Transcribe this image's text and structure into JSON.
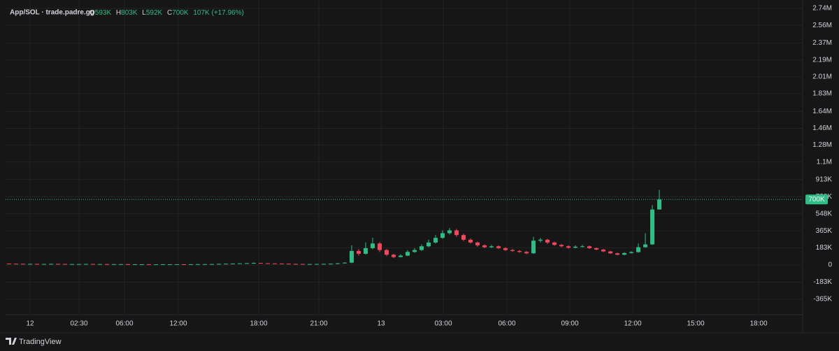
{
  "chart_data": {
    "type": "candlestick",
    "title": "App/SOL · trade.padre.gg",
    "legend": {
      "open_label": "O",
      "open": "593K",
      "high_label": "H",
      "high": "803K",
      "low_label": "L",
      "low": "592K",
      "close_label": "C",
      "close": "700K",
      "change": "107K (+17.96%)"
    },
    "up_color": "#2ebd85",
    "down_color": "#f6465d",
    "grid": true,
    "xlim": [
      0,
      114
    ],
    "xticks": [
      {
        "value": 3.5,
        "label": "12"
      },
      {
        "value": 10.5,
        "label": "02:30"
      },
      {
        "value": 17,
        "label": "06:00"
      },
      {
        "value": 24.7,
        "label": "12:00"
      },
      {
        "value": 36.2,
        "label": "18:00"
      },
      {
        "value": 44.8,
        "label": "21:00"
      },
      {
        "value": 53.7,
        "label": "13"
      },
      {
        "value": 62.6,
        "label": "03:00"
      },
      {
        "value": 71.7,
        "label": "06:00"
      },
      {
        "value": 80.7,
        "label": "09:00"
      },
      {
        "value": 89.7,
        "label": "12:00"
      },
      {
        "value": 98.7,
        "label": "15:00"
      },
      {
        "value": 107.7,
        "label": "18:00"
      }
    ],
    "ylim": [
      -530000,
      2830000
    ],
    "yticks": [
      {
        "value": -365000,
        "label": "-365K"
      },
      {
        "value": -183000,
        "label": "-183K"
      },
      0,
      {
        "value": 183000,
        "label": "183K"
      },
      {
        "value": 365000,
        "label": "365K"
      },
      {
        "value": 548000,
        "label": "548K"
      },
      {
        "value": 730000,
        "label": "730K"
      },
      {
        "value": 913000,
        "label": "913K"
      },
      {
        "value": 1100000,
        "label": "1.1M"
      },
      {
        "value": 1280000,
        "label": "1.28M"
      },
      {
        "value": 1460000,
        "label": "1.46M"
      },
      {
        "value": 1640000,
        "label": "1.64M"
      },
      {
        "value": 1830000,
        "label": "1.83M"
      },
      {
        "value": 2010000,
        "label": "2.01M"
      },
      {
        "value": 2190000,
        "label": "2.19M"
      },
      {
        "value": 2370000,
        "label": "2.37M"
      },
      {
        "value": 2560000,
        "label": "2.56M"
      },
      {
        "value": 2740000,
        "label": "2.74M"
      }
    ],
    "last_price": {
      "value": 700000,
      "label": "700K"
    },
    "candles": [
      [
        15000,
        16000,
        13000,
        14000
      ],
      [
        14000,
        15000,
        12000,
        13000
      ],
      [
        13000,
        14000,
        11000,
        12000
      ],
      [
        12000,
        13000,
        11000,
        12000
      ],
      [
        12000,
        13000,
        10000,
        11000
      ],
      [
        11000,
        12000,
        10000,
        11000
      ],
      [
        11000,
        13000,
        10000,
        12000
      ],
      [
        12000,
        13000,
        10000,
        11000
      ],
      [
        11000,
        12000,
        9000,
        10000
      ],
      [
        10000,
        11000,
        9000,
        10000
      ],
      [
        10000,
        11000,
        9000,
        10000
      ],
      [
        10000,
        12000,
        9000,
        11000
      ],
      [
        11000,
        12000,
        9000,
        10000
      ],
      [
        10000,
        11000,
        9000,
        10000
      ],
      [
        10000,
        11000,
        8000,
        9000
      ],
      [
        9000,
        10000,
        8000,
        9000
      ],
      [
        9000,
        10000,
        8000,
        9000
      ],
      [
        9000,
        10000,
        7000,
        8000
      ],
      [
        8000,
        9000,
        7000,
        8000
      ],
      [
        8000,
        9000,
        7000,
        8000
      ],
      [
        8000,
        9000,
        6000,
        7000
      ],
      [
        7000,
        8000,
        6000,
        7000
      ],
      [
        7000,
        9000,
        6000,
        8000
      ],
      [
        8000,
        9000,
        7000,
        8000
      ],
      [
        8000,
        9000,
        7000,
        8000
      ],
      [
        8000,
        9000,
        6000,
        7000
      ],
      [
        7000,
        9000,
        6000,
        8000
      ],
      [
        8000,
        10000,
        7000,
        9000
      ],
      [
        9000,
        10000,
        8000,
        9000
      ],
      [
        9000,
        11000,
        8000,
        10000
      ],
      [
        10000,
        13000,
        9000,
        12000
      ],
      [
        12000,
        15000,
        11000,
        14000
      ],
      [
        14000,
        17000,
        13000,
        16000
      ],
      [
        16000,
        19000,
        15000,
        18000
      ],
      [
        18000,
        22000,
        17000,
        20000
      ],
      [
        20000,
        26000,
        19000,
        22000
      ],
      [
        22000,
        23000,
        18000,
        19000
      ],
      [
        19000,
        20000,
        16000,
        17000
      ],
      [
        17000,
        18000,
        15000,
        16000
      ],
      [
        16000,
        17000,
        13000,
        14000
      ],
      [
        14000,
        15000,
        11000,
        12000
      ],
      [
        12000,
        13000,
        10000,
        11000
      ],
      [
        11000,
        12000,
        9000,
        10000
      ],
      [
        10000,
        11000,
        9000,
        10000
      ],
      [
        10000,
        12000,
        9000,
        11000
      ],
      [
        11000,
        13000,
        10000,
        12000
      ],
      [
        12000,
        16000,
        11000,
        14000
      ],
      [
        14000,
        22000,
        13000,
        18000
      ],
      [
        18000,
        30000,
        16000,
        25000
      ],
      [
        25000,
        210000,
        20000,
        150000
      ],
      [
        150000,
        170000,
        100000,
        120000
      ],
      [
        120000,
        240000,
        110000,
        180000
      ],
      [
        180000,
        290000,
        170000,
        230000
      ],
      [
        230000,
        245000,
        140000,
        160000
      ],
      [
        160000,
        170000,
        95000,
        110000
      ],
      [
        110000,
        120000,
        75000,
        85000
      ],
      [
        85000,
        115000,
        80000,
        100000
      ],
      [
        100000,
        160000,
        95000,
        140000
      ],
      [
        140000,
        180000,
        130000,
        160000
      ],
      [
        160000,
        220000,
        150000,
        200000
      ],
      [
        200000,
        270000,
        190000,
        240000
      ],
      [
        240000,
        320000,
        230000,
        290000
      ],
      [
        290000,
        370000,
        280000,
        340000
      ],
      [
        340000,
        395000,
        325000,
        370000
      ],
      [
        370000,
        385000,
        300000,
        320000
      ],
      [
        320000,
        335000,
        255000,
        270000
      ],
      [
        270000,
        285000,
        230000,
        240000
      ],
      [
        240000,
        250000,
        195000,
        210000
      ],
      [
        210000,
        220000,
        180000,
        190000
      ],
      [
        190000,
        215000,
        180000,
        200000
      ],
      [
        200000,
        210000,
        170000,
        180000
      ],
      [
        180000,
        190000,
        150000,
        160000
      ],
      [
        160000,
        170000,
        140000,
        150000
      ],
      [
        150000,
        160000,
        130000,
        140000
      ],
      [
        140000,
        150000,
        115000,
        125000
      ],
      [
        125000,
        300000,
        120000,
        260000
      ],
      [
        260000,
        290000,
        240000,
        270000
      ],
      [
        270000,
        280000,
        225000,
        240000
      ],
      [
        240000,
        250000,
        205000,
        215000
      ],
      [
        215000,
        225000,
        190000,
        200000
      ],
      [
        200000,
        210000,
        175000,
        185000
      ],
      [
        185000,
        210000,
        178000,
        195000
      ],
      [
        195000,
        215000,
        188000,
        200000
      ],
      [
        200000,
        208000,
        172000,
        180000
      ],
      [
        180000,
        188000,
        158000,
        165000
      ],
      [
        165000,
        172000,
        138000,
        145000
      ],
      [
        145000,
        152000,
        118000,
        125000
      ],
      [
        125000,
        132000,
        104000,
        110000
      ],
      [
        110000,
        136000,
        105000,
        128000
      ],
      [
        128000,
        148000,
        122000,
        138000
      ],
      [
        138000,
        230000,
        132000,
        190000
      ],
      [
        190000,
        340000,
        185000,
        220000
      ],
      [
        220000,
        640000,
        215000,
        593000
      ],
      [
        593000,
        803000,
        592000,
        700000
      ]
    ]
  },
  "brand": "TradingView"
}
